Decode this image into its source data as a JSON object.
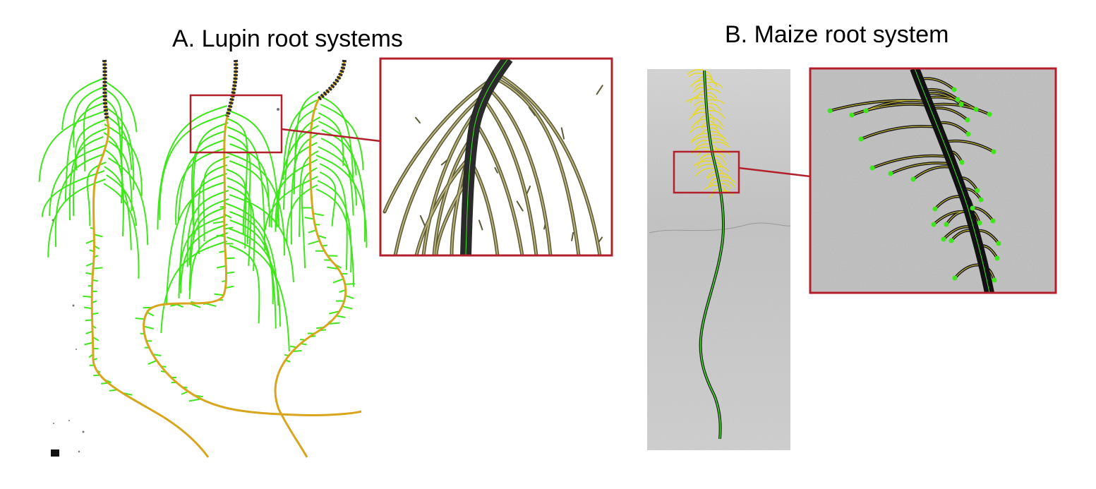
{
  "panels": {
    "a": {
      "title": "A. Lupin root systems"
    },
    "b": {
      "title": "B. Maize root system"
    }
  },
  "colors": {
    "lateral_root": "#3ee61b",
    "primary_root": "#d8a51c",
    "highlight_box": "#b3202c",
    "maize_background": "#c9c9c9",
    "root_tissue": "#1f1f1f",
    "maize_lateral": "#e6d92a"
  }
}
